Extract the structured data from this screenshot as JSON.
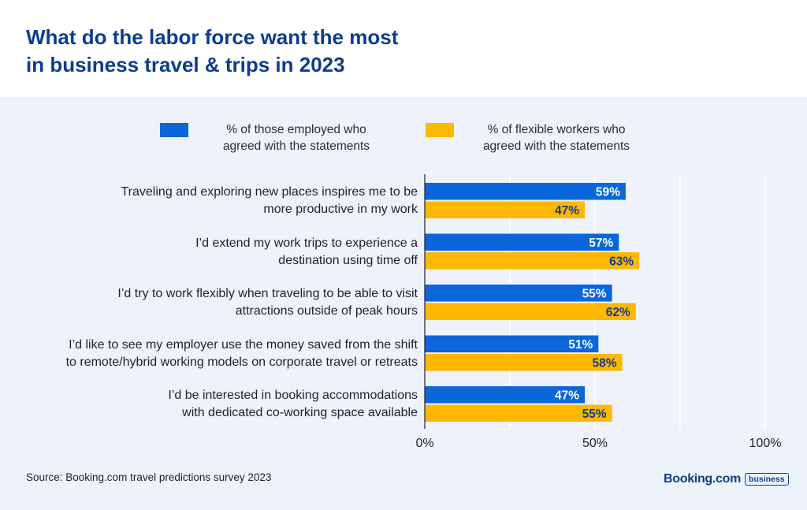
{
  "header": {
    "title_line1": "What do the labor force want the most",
    "title_line2": "in business travel & trips in 2023"
  },
  "legend": {
    "employed": {
      "line1": "% of those employed who",
      "line2": "agreed with the statements",
      "color": "#0a66d9"
    },
    "flexible": {
      "line1": "% of flexible workers who",
      "line2": "agreed with the statements",
      "color": "#feb703"
    }
  },
  "chart_data": {
    "type": "bar",
    "orientation": "horizontal",
    "title": "What do the labor force want the most in business travel & trips in 2023",
    "categories": [
      [
        "Traveling and exploring new places inspires me to be",
        "more productive in my work"
      ],
      [
        "I’d extend my work trips to experience a",
        "destination using time off"
      ],
      [
        "I’d try to work flexibly when traveling to be able to visit",
        "attractions outside of peak hours"
      ],
      [
        "I’d like to see my employer use the money saved from the shift",
        "to remote/hybrid working models on corporate travel or retreats"
      ],
      [
        "I’d be interested in booking accommodations",
        "with dedicated co-working space available"
      ]
    ],
    "series": [
      {
        "name": "% of those employed who agreed with the statements",
        "values": [
          59,
          57,
          55,
          51,
          47
        ],
        "color": "#0a66d9",
        "label_color": "#ffffff"
      },
      {
        "name": "% of flexible workers who agreed with the statements",
        "values": [
          47,
          63,
          62,
          58,
          55
        ],
        "color": "#feb703",
        "label_color": "#0d3d8e"
      }
    ],
    "xlim": [
      0,
      100
    ],
    "xticks": [
      0,
      50,
      100
    ],
    "xtick_labels": [
      "0%",
      "50%",
      "100%"
    ],
    "value_suffix": "%",
    "legend_position": "top",
    "grid": true
  },
  "footer": {
    "source": "Source: Booking.com travel predictions survey 2023",
    "logo_main": "Booking.com",
    "logo_badge": "business"
  }
}
